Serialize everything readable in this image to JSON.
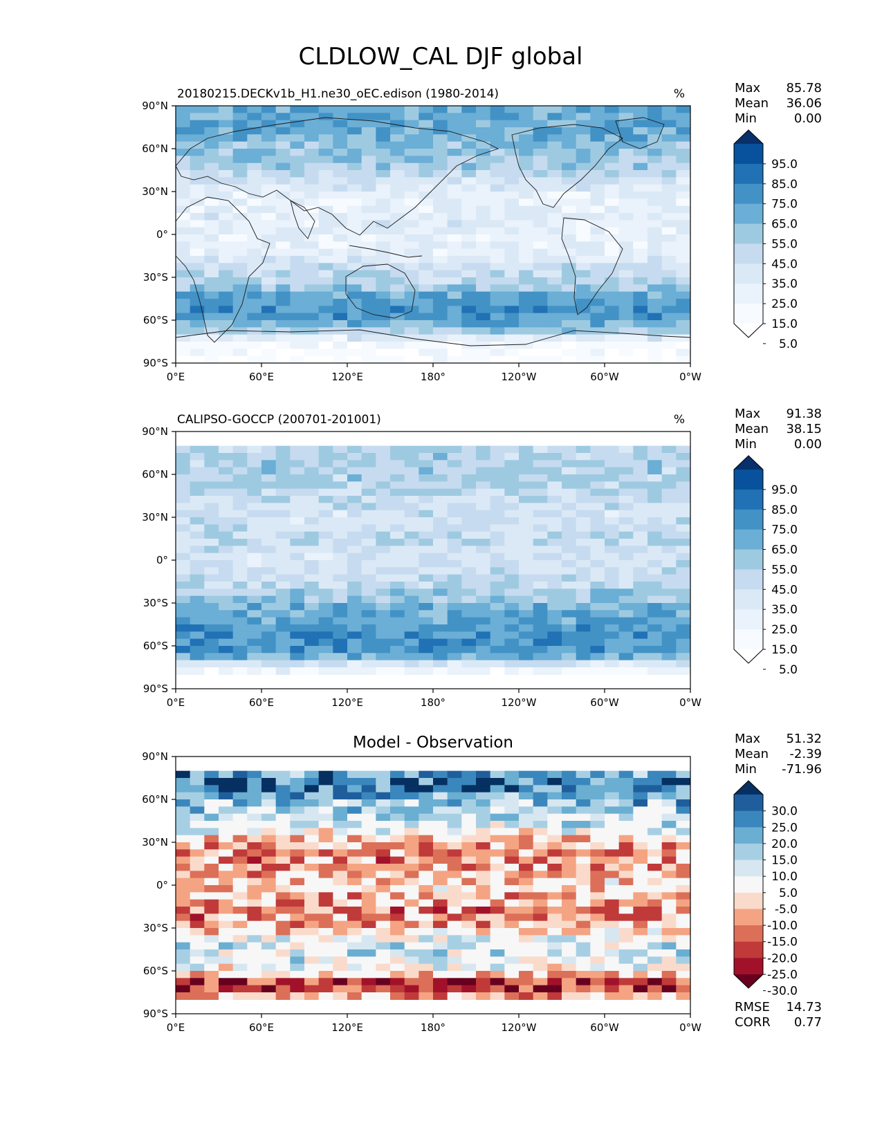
{
  "figure": {
    "title": "CLDLOW_CAL DJF global"
  },
  "chart_data": [
    {
      "type": "heatmap",
      "id": "model",
      "title": "20180215.DECKv1b_H1.ne30_oEC.edison (1980-2014)",
      "units": "%",
      "stats": [
        {
          "label": "Max",
          "value": "85.78"
        },
        {
          "label": "Mean",
          "value": "36.06"
        },
        {
          "label": "Min",
          "value": "0.00"
        }
      ],
      "x_ticks": [
        "0°E",
        "60°E",
        "120°E",
        "180°",
        "120°W",
        "60°W",
        "0°W"
      ],
      "y_ticks": [
        "90°N",
        "60°N",
        "30°N",
        "0°",
        "30°S",
        "60°S",
        "90°S"
      ],
      "xlim": [
        0,
        360
      ],
      "ylim": [
        -90,
        90
      ],
      "colormap": "Blues",
      "colorbar_levels": [
        "95.0",
        "85.0",
        "75.0",
        "65.0",
        "55.0",
        "45.0",
        "35.0",
        "25.0",
        "15.0",
        "5.0"
      ],
      "colorbar_colors": [
        "#08306b",
        "#08519c",
        "#2171b5",
        "#4292c6",
        "#6baed6",
        "#9ecae1",
        "#c6dbef",
        "#dbe9f6",
        "#eaf2fb",
        "#f7fbff",
        "#ffffff"
      ],
      "zonal_profile": {
        "lat": [
          85,
          75,
          65,
          55,
          45,
          35,
          25,
          15,
          5,
          -5,
          -15,
          -25,
          -35,
          -45,
          -55,
          -65,
          -75,
          -85
        ],
        "value": [
          60,
          65,
          55,
          50,
          45,
          30,
          20,
          25,
          25,
          20,
          25,
          40,
          45,
          65,
          70,
          55,
          15,
          5
        ]
      }
    },
    {
      "type": "heatmap",
      "id": "obs",
      "title": "CALIPSO-GOCCP (200701-201001)",
      "units": "%",
      "stats": [
        {
          "label": "Max",
          "value": "91.38"
        },
        {
          "label": "Mean",
          "value": "38.15"
        },
        {
          "label": "Min",
          "value": "0.00"
        }
      ],
      "x_ticks": [
        "0°E",
        "60°E",
        "120°E",
        "180°",
        "120°W",
        "60°W",
        "0°W"
      ],
      "y_ticks": [
        "90°N",
        "60°N",
        "30°N",
        "0°",
        "30°S",
        "60°S",
        "90°S"
      ],
      "xlim": [
        0,
        360
      ],
      "ylim": [
        -90,
        90
      ],
      "valid_lat_range": [
        -82,
        82
      ],
      "colormap": "Blues",
      "colorbar_levels": [
        "95.0",
        "85.0",
        "75.0",
        "65.0",
        "55.0",
        "45.0",
        "35.0",
        "25.0",
        "15.0",
        "5.0"
      ],
      "colorbar_colors": [
        "#08306b",
        "#08519c",
        "#2171b5",
        "#4292c6",
        "#6baed6",
        "#9ecae1",
        "#c6dbef",
        "#dbe9f6",
        "#eaf2fb",
        "#f7fbff",
        "#ffffff"
      ],
      "zonal_profile": {
        "lat": [
          80,
          75,
          65,
          55,
          45,
          35,
          25,
          15,
          5,
          -5,
          -15,
          -25,
          -35,
          -45,
          -55,
          -65,
          -75,
          -80
        ],
        "value": [
          40,
          45,
          45,
          45,
          40,
          35,
          35,
          40,
          35,
          35,
          40,
          50,
          60,
          65,
          70,
          70,
          20,
          10
        ]
      }
    },
    {
      "type": "heatmap",
      "id": "diff",
      "title": "Model - Observation",
      "units": "",
      "stats": [
        {
          "label": "Max",
          "value": "51.32"
        },
        {
          "label": "Mean",
          "value": "-2.39"
        },
        {
          "label": "Min",
          "value": "-71.96"
        }
      ],
      "metrics": [
        {
          "label": "RMSE",
          "value": "14.73"
        },
        {
          "label": "CORR",
          "value": "0.77"
        }
      ],
      "x_ticks": [
        "0°E",
        "60°E",
        "120°E",
        "180°",
        "120°W",
        "60°W",
        "0°W"
      ],
      "y_ticks": [
        "90°N",
        "60°N",
        "30°N",
        "0°",
        "30°S",
        "60°S",
        "90°S"
      ],
      "xlim": [
        0,
        360
      ],
      "ylim": [
        -90,
        90
      ],
      "valid_lat_range": [
        -82,
        82
      ],
      "colormap": "RdBu",
      "colorbar_levels": [
        "30.0",
        "25.0",
        "20.0",
        "15.0",
        "10.0",
        "5.0",
        "-5.0",
        "-10.0",
        "-15.0",
        "-20.0",
        "-25.0",
        "-30.0"
      ],
      "colorbar_colors": [
        "#053061",
        "#1f5e9c",
        "#3a87bd",
        "#6aaed2",
        "#a7cfe4",
        "#d6e7f1",
        "#f7f7f7",
        "#fadbcb",
        "#f4a482",
        "#dc6f58",
        "#c03a3a",
        "#a1122a",
        "#67001f"
      ],
      "zonal_profile": {
        "lat": [
          80,
          70,
          60,
          50,
          40,
          30,
          20,
          10,
          0,
          -10,
          -20,
          -30,
          -40,
          -50,
          -60,
          -70,
          -80
        ],
        "value": [
          20,
          25,
          15,
          10,
          5,
          -10,
          -15,
          -10,
          -5,
          -10,
          -15,
          -10,
          5,
          5,
          0,
          -30,
          -5
        ]
      }
    }
  ]
}
